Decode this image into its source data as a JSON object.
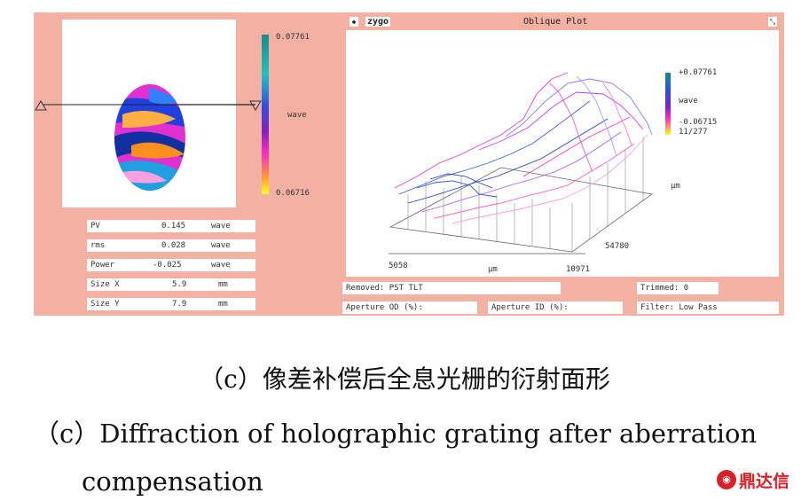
{
  "left_panel": {
    "scale_top": "0.07761",
    "scale_unit": "wave",
    "scale_bottom": "0.06716",
    "rows": [
      {
        "label": "PV",
        "value": "0.145",
        "unit": "wave"
      },
      {
        "label": "rms",
        "value": "0.028",
        "unit": "wave"
      },
      {
        "label": "Power",
        "value": "-0.025",
        "unit": "wave"
      },
      {
        "label": "Size X",
        "value": "5.9",
        "unit": "mm"
      },
      {
        "label": "Size Y",
        "value": "7.9",
        "unit": "mm"
      }
    ]
  },
  "plot_window": {
    "close_glyph": "◆",
    "brand": "zygo",
    "title": "Oblique Plot",
    "scale_top": "+0.07761",
    "scale_unit": "wave",
    "scale_bottom": "-0.06715",
    "scale_extra": "11/277",
    "axis_unit_y": "μm",
    "axis_unit_x": "μm",
    "x_start": "5058",
    "x_end": "10971",
    "y_end": "54780"
  },
  "bottom_fields": {
    "removed": "Removed: PST TLT",
    "trimmed": "Trimmed: 0",
    "aperture_od": "Aperture OD (%):",
    "aperture_id": "Aperture ID (%):",
    "filter": "Filter:   Low Pass"
  },
  "captions": {
    "chinese": "（c）像差补偿后全息光栅的衍射面形",
    "english_line1": "（c）Diffraction of holographic grating after aberration",
    "english_line2": "compensation"
  },
  "watermark": "鼎达信"
}
